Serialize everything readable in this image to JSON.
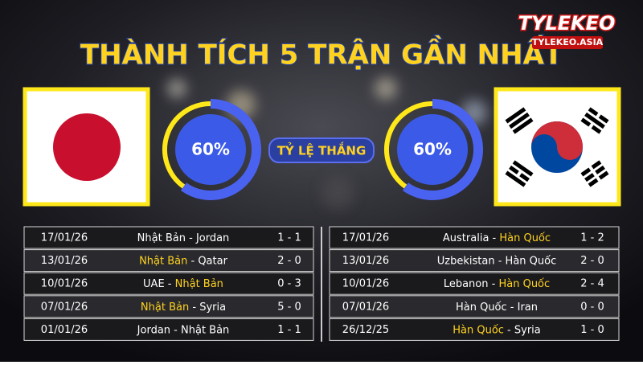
{
  "header": {
    "title": "THÀNH TÍCH 5 TRẬN GẦN NHẤT",
    "logo": "TYLEKEO",
    "logo_sub": "TYLEKEO.ASIA"
  },
  "win_label": "TỶ LỆ THẮNG",
  "teams": [
    {
      "win_rate": {
        "value": 60,
        "label": "60%"
      },
      "matches": [
        {
          "date": "17/01/26",
          "home": "Nhật Bản",
          "sep": " - ",
          "away": "Jordan",
          "score": "1 - 1",
          "highlight": null
        },
        {
          "date": "13/01/26",
          "home": "Nhật Bản",
          "sep": " - ",
          "away": "Qatar",
          "score": "2 - 0",
          "highlight": "home"
        },
        {
          "date": "10/01/26",
          "home": "UAE",
          "sep": " - ",
          "away": "Nhật Bản",
          "score": "0 - 3",
          "highlight": "away"
        },
        {
          "date": "07/01/26",
          "home": "Nhật Bản",
          "sep": " - ",
          "away": "Syria",
          "score": "5 - 0",
          "highlight": "home"
        },
        {
          "date": "01/01/26",
          "home": "Jordan",
          "sep": " - ",
          "away": "Nhật Bản",
          "score": "1 - 1",
          "highlight": null
        }
      ]
    },
    {
      "win_rate": {
        "value": 60,
        "label": "60%"
      },
      "matches": [
        {
          "date": "17/01/26",
          "home": "Australia",
          "sep": " - ",
          "away": "Hàn Quốc",
          "score": "1 - 2",
          "highlight": "away"
        },
        {
          "date": "13/01/26",
          "home": "Uzbekistan",
          "sep": " - ",
          "away": "Hàn Quốc",
          "score": "2 - 0",
          "highlight": null
        },
        {
          "date": "10/01/26",
          "home": "Lebanon",
          "sep": " - ",
          "away": "Hàn Quốc",
          "score": "2 - 4",
          "highlight": "away"
        },
        {
          "date": "07/01/26",
          "home": "Hàn Quốc",
          "sep": " - ",
          "away": "Iran",
          "score": "0 - 0",
          "highlight": null
        },
        {
          "date": "26/12/25",
          "home": "Hàn Quốc",
          "sep": " - ",
          "away": "Syria",
          "score": "1 - 0",
          "highlight": "home"
        }
      ]
    }
  ]
}
